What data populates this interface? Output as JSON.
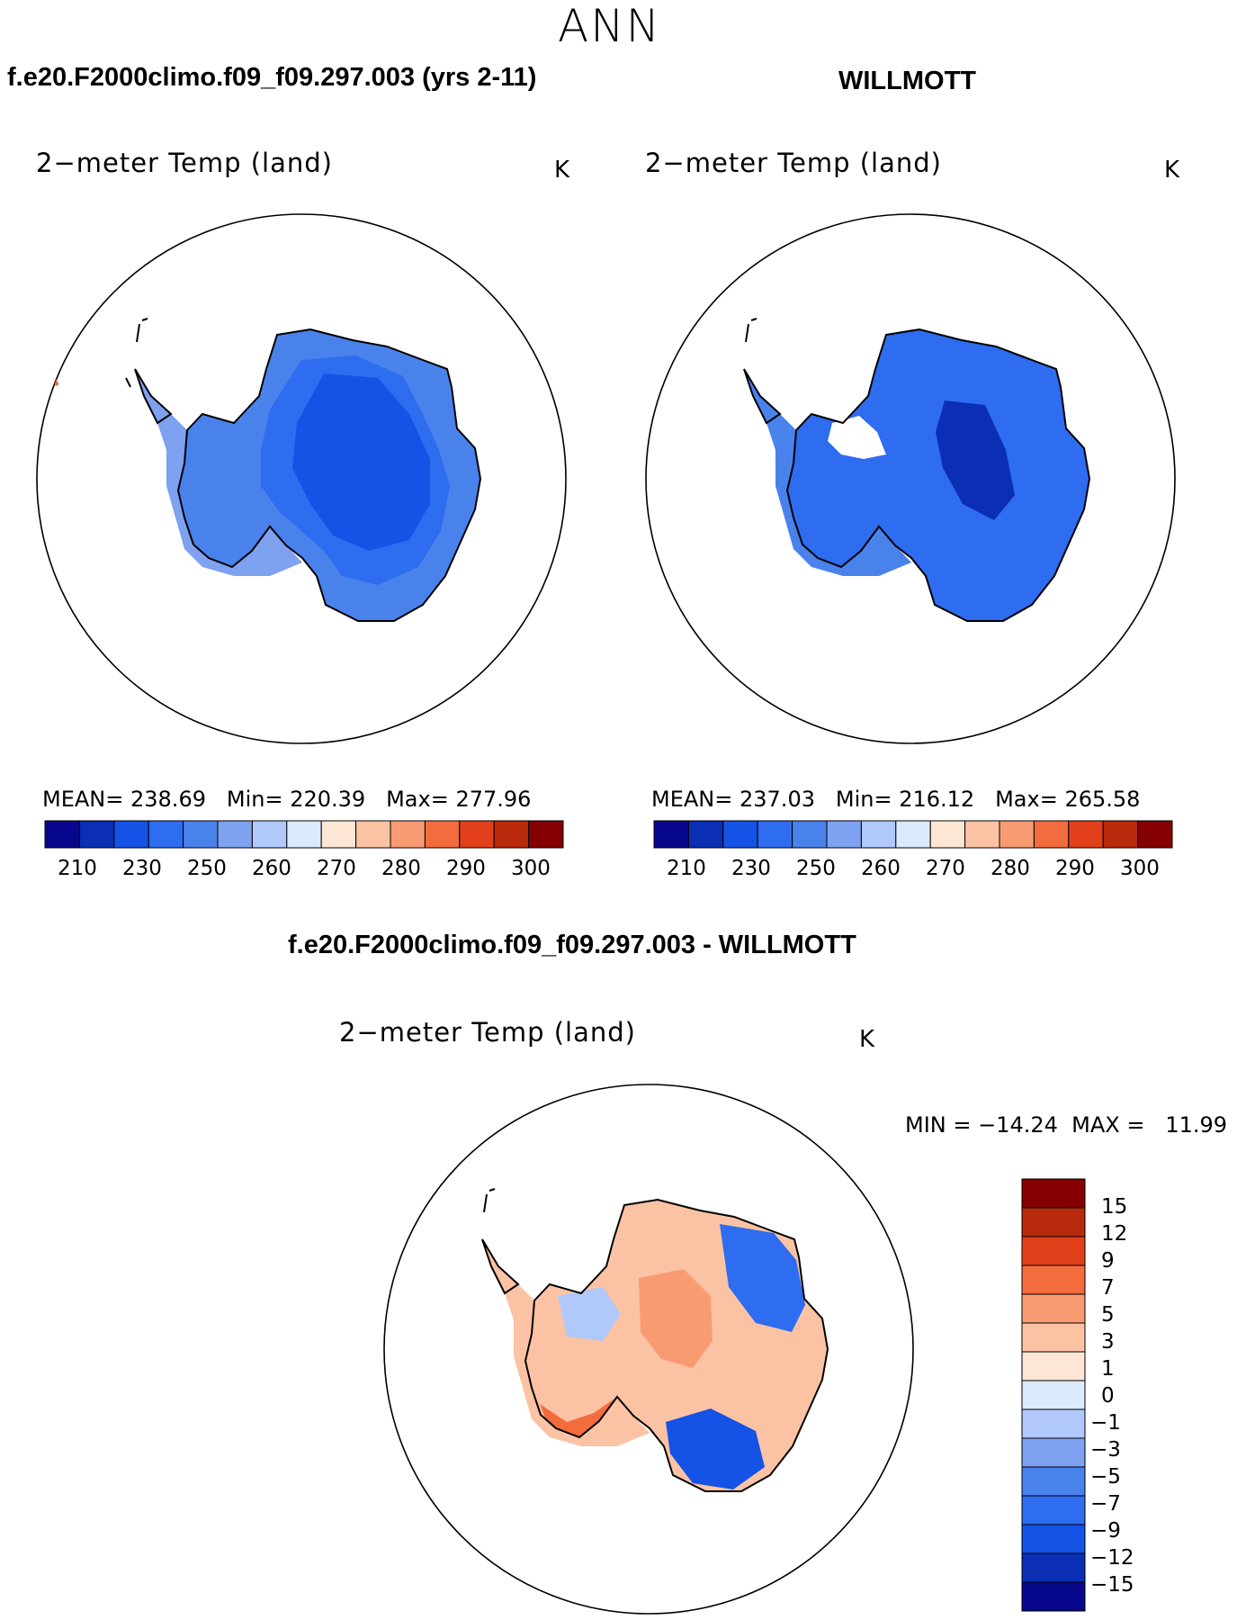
{
  "figure": {
    "title": "ANN"
  },
  "colors": {
    "abs_scale": [
      "#08088c",
      "#0a2eb4",
      "#1552e6",
      "#2e6cf0",
      "#4a82ec",
      "#7ea1f0",
      "#b0c8fa",
      "#dceafd",
      "#fde6d4",
      "#fbc3a4",
      "#f99b72",
      "#f36c3e",
      "#e2401a",
      "#b92a0c",
      "#850000"
    ],
    "diff_scale": [
      "#08088c",
      "#0a2eb4",
      "#1552e6",
      "#2e6cf0",
      "#4a82ec",
      "#7ea1f0",
      "#b0c8fa",
      "#dceafd",
      "#fde6d4",
      "#fbc3a4",
      "#f99b72",
      "#f36c3e",
      "#e2401a",
      "#b92a0c",
      "#850000"
    ]
  },
  "panels": [
    {
      "case_title": "f.e20.F2000climo.f09_f09.297.003 (yrs 2-11)",
      "variable": "2−meter Temp (land)",
      "unit": "K",
      "stats": {
        "mean_label": "MEAN=",
        "mean": "238.69",
        "min_label": "Min=",
        "min": "220.39",
        "max_label": "Max=",
        "max": "277.96"
      },
      "colorbar_ticks": [
        "210",
        "230",
        "250",
        "260",
        "270",
        "280",
        "290",
        "300"
      ]
    },
    {
      "case_title": "WILLMOTT",
      "variable": "2−meter Temp (land)",
      "unit": "K",
      "stats": {
        "mean_label": "MEAN=",
        "mean": "237.03",
        "min_label": "Min=",
        "min": "216.12",
        "max_label": "Max=",
        "max": "265.58"
      },
      "colorbar_ticks": [
        "210",
        "230",
        "250",
        "260",
        "270",
        "280",
        "290",
        "300"
      ]
    },
    {
      "case_title": "f.e20.F2000climo.f09_f09.297.003 - WILLMOTT",
      "variable": "2−meter Temp (land)",
      "unit": "K",
      "range_text": "MIN = −14.24  MAX =   11.99",
      "colorbar_labels": [
        "15",
        "12",
        "9",
        "7",
        "5",
        "3",
        "1",
        "0",
        "−1",
        "−3",
        "−5",
        "−7",
        "−9",
        "−12",
        "−15"
      ]
    }
  ],
  "chart_data": {
    "type": "heatmap",
    "title": "ANN",
    "projection": "south polar stereographic",
    "maps": [
      {
        "name": "f.e20.F2000climo.f09_f09.297.003 (yrs 2-11)",
        "variable": "2-meter Temp (land)",
        "units": "K",
        "mean": 238.69,
        "min": 220.39,
        "max": 277.96,
        "levels": [
          210,
          220,
          230,
          240,
          250,
          255,
          260,
          265,
          270,
          275,
          280,
          285,
          290,
          295,
          300
        ]
      },
      {
        "name": "WILLMOTT",
        "variable": "2-meter Temp (land)",
        "units": "K",
        "mean": 237.03,
        "min": 216.12,
        "max": 265.58,
        "levels": [
          210,
          220,
          230,
          240,
          250,
          255,
          260,
          265,
          270,
          275,
          280,
          285,
          290,
          295,
          300
        ]
      },
      {
        "name": "f.e20.F2000climo.f09_f09.297.003 - WILLMOTT",
        "variable": "2-meter Temp (land)",
        "units": "K",
        "min": -14.24,
        "max": 11.99,
        "levels": [
          -15,
          -12,
          -9,
          -7,
          -5,
          -3,
          -1,
          0,
          1,
          3,
          5,
          7,
          9,
          12,
          15
        ]
      }
    ]
  }
}
